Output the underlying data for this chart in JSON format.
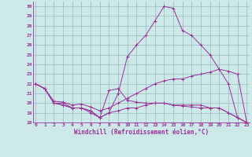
{
  "xlabel": "Windchill (Refroidissement éolien,°C)",
  "bg_color": "#cce8e8",
  "line_color": "#993399",
  "grid_color": "#99bbbb",
  "ylim": [
    18,
    30.5
  ],
  "xlim": [
    -0.3,
    23.3
  ],
  "yticks": [
    18,
    19,
    20,
    21,
    22,
    23,
    24,
    25,
    26,
    27,
    28,
    29,
    30
  ],
  "xticks": [
    0,
    1,
    2,
    3,
    4,
    5,
    6,
    7,
    8,
    9,
    10,
    11,
    12,
    13,
    14,
    15,
    16,
    17,
    18,
    19,
    20,
    21,
    22,
    23
  ],
  "lines": [
    {
      "x": [
        0,
        1,
        2,
        3,
        4,
        5,
        6,
        7,
        8,
        9,
        10,
        11,
        12,
        13,
        14,
        15,
        16,
        17,
        18,
        19,
        20,
        21,
        22,
        23
      ],
      "y": [
        22,
        21.5,
        20.0,
        20.0,
        19.5,
        19.5,
        19.0,
        18.5,
        19.0,
        21.0,
        24.8,
        26.0,
        27.0,
        28.5,
        30.0,
        29.8,
        27.5,
        27.0,
        26.0,
        25.0,
        23.5,
        22.0,
        18.5,
        18.0
      ]
    },
    {
      "x": [
        0,
        1,
        2,
        3,
        4,
        5,
        6,
        7,
        8,
        9,
        10,
        11,
        12,
        13,
        14,
        15,
        16,
        17,
        18,
        19,
        20,
        21,
        22,
        23
      ],
      "y": [
        22,
        21.5,
        20.2,
        20.1,
        19.8,
        19.9,
        19.6,
        19.2,
        19.5,
        20.0,
        20.5,
        21.0,
        21.5,
        22.0,
        22.3,
        22.5,
        22.5,
        22.8,
        23.0,
        23.2,
        23.5,
        23.3,
        23.0,
        18.0
      ]
    },
    {
      "x": [
        0,
        1,
        2,
        3,
        4,
        5,
        6,
        7,
        8,
        9,
        10,
        11,
        12,
        13,
        14,
        15,
        16,
        17,
        18,
        19,
        20,
        21,
        22,
        23
      ],
      "y": [
        22,
        21.5,
        20.0,
        19.8,
        19.5,
        19.5,
        19.2,
        18.5,
        21.3,
        21.5,
        20.3,
        20.1,
        20.0,
        20.0,
        20.0,
        19.8,
        19.7,
        19.6,
        19.5,
        19.5,
        19.5,
        19.0,
        18.5,
        18.0
      ]
    },
    {
      "x": [
        0,
        1,
        2,
        3,
        4,
        5,
        6,
        7,
        8,
        9,
        10,
        11,
        12,
        13,
        14,
        15,
        16,
        17,
        18,
        19,
        20,
        21,
        22,
        23
      ],
      "y": [
        22,
        21.5,
        20.0,
        19.8,
        19.5,
        19.5,
        19.2,
        18.5,
        19.0,
        19.2,
        19.5,
        19.5,
        19.8,
        20.0,
        20.0,
        19.8,
        19.8,
        19.8,
        19.8,
        19.5,
        19.5,
        19.0,
        18.5,
        18.0
      ]
    }
  ]
}
